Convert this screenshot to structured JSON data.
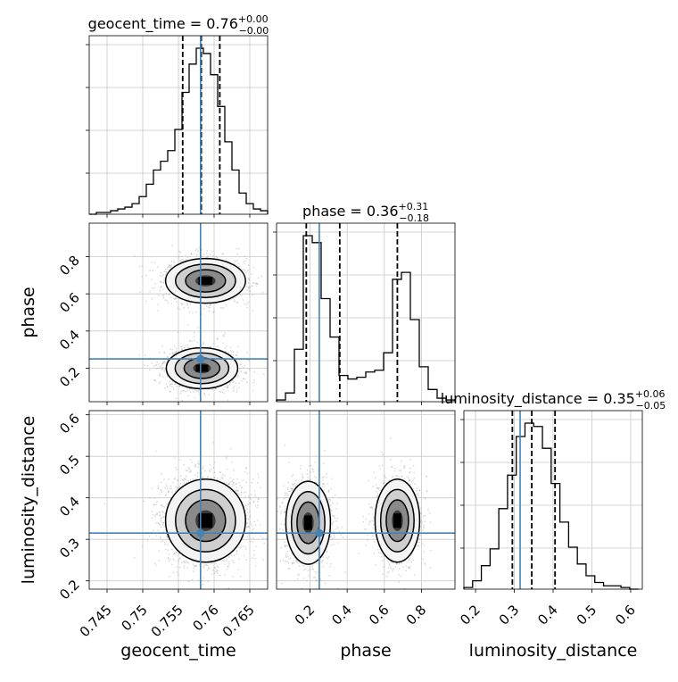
{
  "chart_data": [
    {
      "type": "histogram",
      "panel": "geocent_time-1d",
      "title_param": "geocent_time",
      "title_value": "0.76",
      "title_plus": "+0.00",
      "title_minus": "−0.00",
      "xlim": [
        0.7425,
        0.7675
      ],
      "xticks": [
        0.745,
        0.75,
        0.755,
        0.76,
        0.765
      ],
      "quantiles": [
        0.7556,
        0.7582,
        0.7608
      ],
      "truth": 0.7581,
      "bin_edges": [
        0.7425,
        0.7435,
        0.7445,
        0.7455,
        0.7465,
        0.7475,
        0.7485,
        0.7495,
        0.7505,
        0.7515,
        0.7525,
        0.7535,
        0.7545,
        0.7555,
        0.7565,
        0.7575,
        0.7585,
        0.7595,
        0.7605,
        0.7615,
        0.7625,
        0.7635,
        0.7645,
        0.7655,
        0.7665,
        0.7675
      ],
      "counts": [
        0,
        0.01,
        0.01,
        0.02,
        0.03,
        0.04,
        0.06,
        0.1,
        0.17,
        0.25,
        0.3,
        0.36,
        0.48,
        0.69,
        0.85,
        0.94,
        0.91,
        0.79,
        0.61,
        0.41,
        0.25,
        0.12,
        0.06,
        0.03,
        0.02
      ]
    },
    {
      "type": "histogram",
      "panel": "phase-1d",
      "title_param": "phase",
      "title_value": "0.36",
      "title_plus": "+0.31",
      "title_minus": "−0.18",
      "xlim": [
        0.02,
        0.98
      ],
      "xticks": [
        0.2,
        0.4,
        0.6,
        0.8
      ],
      "quantiles": [
        0.18,
        0.36,
        0.67
      ],
      "truth": 0.25,
      "bin_edges": [
        0.02,
        0.068,
        0.116,
        0.164,
        0.212,
        0.26,
        0.308,
        0.356,
        0.404,
        0.452,
        0.5,
        0.548,
        0.596,
        0.644,
        0.692,
        0.74,
        0.788,
        0.836,
        0.884,
        0.932,
        0.98
      ],
      "counts": [
        0.01,
        0.05,
        0.3,
        0.95,
        0.91,
        0.59,
        0.37,
        0.15,
        0.13,
        0.14,
        0.17,
        0.18,
        0.28,
        0.7,
        0.74,
        0.47,
        0.2,
        0.07,
        0.02,
        0.01
      ]
    },
    {
      "type": "histogram",
      "panel": "luminosity_distance-1d",
      "title_param": "luminosity_distance",
      "title_value": "0.35",
      "title_plus": "+0.06",
      "title_minus": "−0.05",
      "xlim": [
        0.17,
        0.63
      ],
      "xticks": [
        0.2,
        0.3,
        0.4,
        0.5,
        0.6
      ],
      "quantiles": [
        0.295,
        0.345,
        0.405
      ],
      "truth": 0.315,
      "bin_edges": [
        0.17,
        0.1925,
        0.215,
        0.2375,
        0.26,
        0.2825,
        0.305,
        0.3275,
        0.35,
        0.3725,
        0.395,
        0.4175,
        0.44,
        0.4625,
        0.485,
        0.5075,
        0.53,
        0.5525,
        0.575,
        0.5975,
        0.62
      ],
      "counts": [
        0.01,
        0.05,
        0.14,
        0.24,
        0.48,
        0.68,
        0.91,
        0.99,
        0.97,
        0.84,
        0.63,
        0.4,
        0.25,
        0.15,
        0.08,
        0.04,
        0.02,
        0.02,
        0.01,
        0
      ]
    },
    {
      "type": "scatter-contour",
      "panel": "geocent_time-vs-phase",
      "xlim": [
        0.7425,
        0.7675
      ],
      "ylim": [
        0.02,
        0.98
      ],
      "yticks": [
        0.2,
        0.4,
        0.6,
        0.8
      ],
      "ylabel": "phase",
      "truth": [
        0.7581,
        0.25
      ],
      "modes": [
        {
          "x": 0.7588,
          "y": 0.67,
          "sx": 0.0028,
          "sy": 0.06,
          "w": 0.45
        },
        {
          "x": 0.7583,
          "y": 0.2,
          "sx": 0.0025,
          "sy": 0.055,
          "w": 0.55
        }
      ]
    },
    {
      "type": "scatter-contour",
      "panel": "geocent_time-vs-luminosity_distance",
      "xlim": [
        0.7425,
        0.7675
      ],
      "ylim": [
        0.18,
        0.61
      ],
      "xticks": [
        0.745,
        0.75,
        0.755,
        0.76,
        0.765
      ],
      "yticks": [
        0.2,
        0.3,
        0.4,
        0.5,
        0.6
      ],
      "xlabel": "geocent_time",
      "ylabel": "luminosity_distance",
      "truth": [
        0.7581,
        0.315
      ],
      "modes": [
        {
          "x": 0.7588,
          "y": 0.345,
          "sx": 0.0028,
          "sy": 0.05,
          "w": 1.0
        }
      ]
    },
    {
      "type": "scatter-contour",
      "panel": "phase-vs-luminosity_distance",
      "xlim": [
        0.02,
        0.98
      ],
      "ylim": [
        0.18,
        0.61
      ],
      "xticks": [
        0.2,
        0.4,
        0.6,
        0.8
      ],
      "xlabel": "phase",
      "truth": [
        0.25,
        0.315
      ],
      "modes": [
        {
          "x": 0.19,
          "y": 0.34,
          "sx": 0.06,
          "sy": 0.05,
          "w": 0.52
        },
        {
          "x": 0.67,
          "y": 0.345,
          "sx": 0.06,
          "sy": 0.05,
          "w": 0.48
        }
      ]
    },
    {
      "type": "label",
      "panel": "luminosity_distance-xlabel",
      "xlabel": "luminosity_distance"
    }
  ],
  "colors": {
    "truth": "#4682b4",
    "hist": "#000000",
    "grid": "#c8c8c8",
    "points": "#9a9a9a"
  }
}
